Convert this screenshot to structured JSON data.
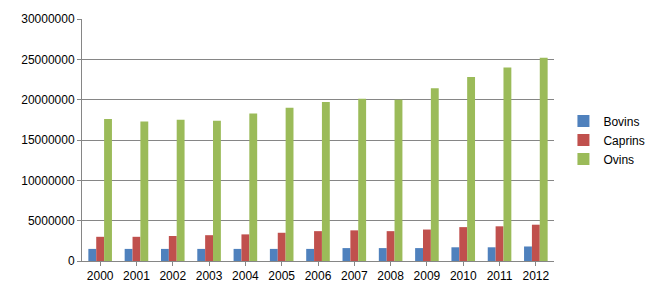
{
  "chart_data": {
    "type": "bar",
    "categories": [
      "2000",
      "2001",
      "2002",
      "2003",
      "2004",
      "2005",
      "2006",
      "2007",
      "2008",
      "2009",
      "2010",
      "2011",
      "2012"
    ],
    "series": [
      {
        "name": "Bovins",
        "color": "#4f81bd",
        "values": [
          1500000,
          1500000,
          1500000,
          1500000,
          1500000,
          1500000,
          1500000,
          1600000,
          1600000,
          1600000,
          1700000,
          1700000,
          1800000
        ]
      },
      {
        "name": "Caprins",
        "color": "#c0504d",
        "values": [
          3000000,
          3000000,
          3100000,
          3200000,
          3300000,
          3500000,
          3700000,
          3800000,
          3700000,
          3900000,
          4200000,
          4300000,
          4500000
        ]
      },
      {
        "name": "Ovins",
        "color": "#9bbb59",
        "values": [
          17600000,
          17300000,
          17500000,
          17400000,
          18300000,
          19000000,
          19700000,
          20100000,
          20000000,
          21400000,
          22800000,
          24000000,
          25200000
        ]
      }
    ],
    "ylim": [
      0,
      30000000
    ],
    "yticks": [
      0,
      5000000,
      10000000,
      15000000,
      20000000,
      25000000,
      30000000
    ],
    "grid": true,
    "legend": "right"
  }
}
